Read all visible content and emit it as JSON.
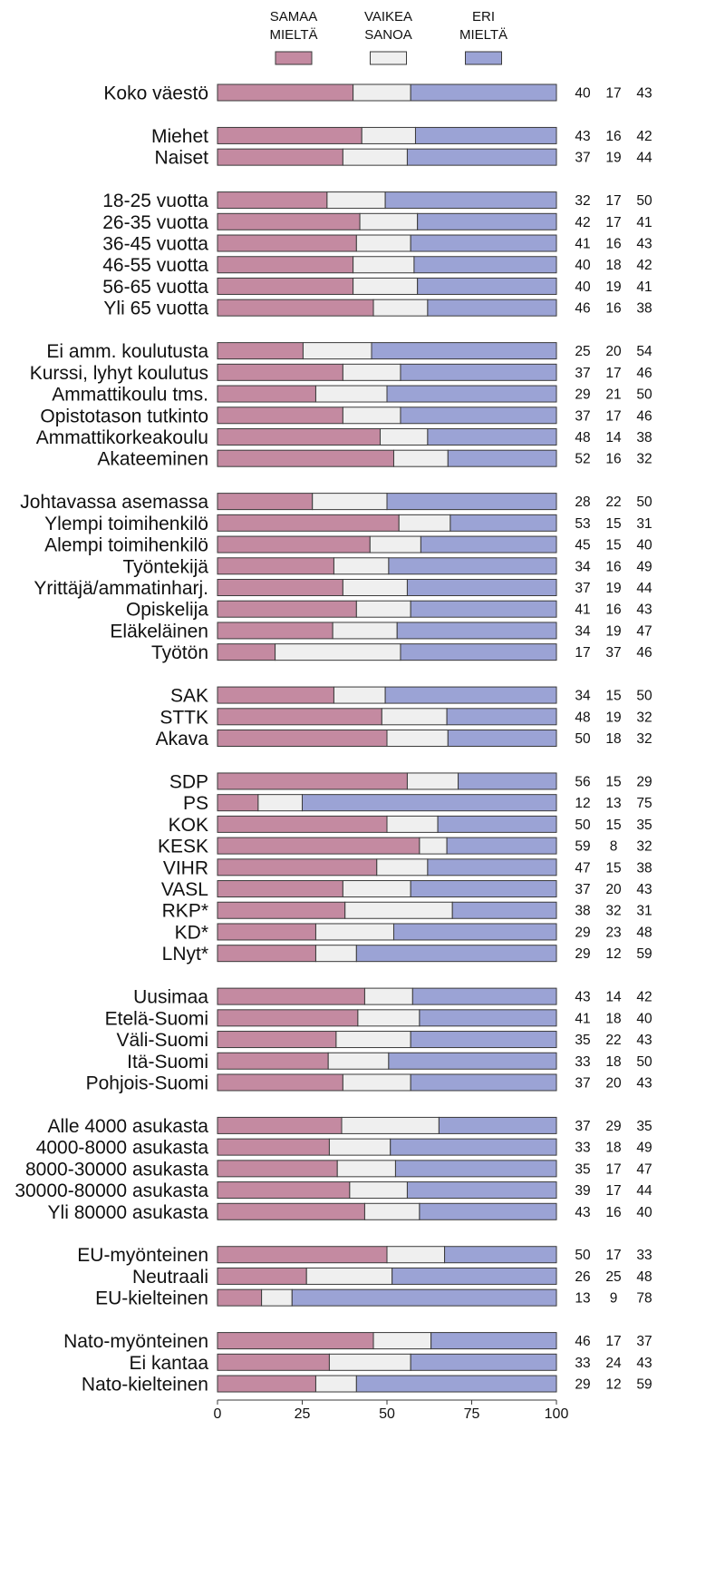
{
  "chart_data": {
    "type": "bar",
    "orientation": "horizontal",
    "stacked": true,
    "xlim": [
      0,
      100
    ],
    "xticks": [
      "0",
      "25",
      "50",
      "75",
      "100"
    ],
    "grid": false,
    "legend_position": "top",
    "series": [
      {
        "name": "SAMAA MIELTÄ",
        "color": "#c48aa1"
      },
      {
        "name": "VAIKEA SANOA",
        "color": "#efefef"
      },
      {
        "name": "ERI MIELTÄ",
        "color": "#9ba3d5"
      }
    ],
    "groups": [
      {
        "rows": [
          {
            "label": "Koko väestö",
            "values": [
              40,
              17,
              43
            ]
          }
        ]
      },
      {
        "rows": [
          {
            "label": "Miehet",
            "values": [
              43,
              16,
              42
            ]
          },
          {
            "label": "Naiset",
            "values": [
              37,
              19,
              44
            ]
          }
        ]
      },
      {
        "rows": [
          {
            "label": "18-25 vuotta",
            "values": [
              32,
              17,
              50
            ]
          },
          {
            "label": "26-35 vuotta",
            "values": [
              42,
              17,
              41
            ]
          },
          {
            "label": "36-45 vuotta",
            "values": [
              41,
              16,
              43
            ]
          },
          {
            "label": "46-55 vuotta",
            "values": [
              40,
              18,
              42
            ]
          },
          {
            "label": "56-65 vuotta",
            "values": [
              40,
              19,
              41
            ]
          },
          {
            "label": "Yli 65 vuotta",
            "values": [
              46,
              16,
              38
            ]
          }
        ]
      },
      {
        "rows": [
          {
            "label": "Ei amm. koulutusta",
            "values": [
              25,
              20,
              54
            ]
          },
          {
            "label": "Kurssi, lyhyt koulutus",
            "values": [
              37,
              17,
              46
            ]
          },
          {
            "label": "Ammattikoulu tms.",
            "values": [
              29,
              21,
              50
            ]
          },
          {
            "label": "Opistotason tutkinto",
            "values": [
              37,
              17,
              46
            ]
          },
          {
            "label": "Ammattikorkeakoulu",
            "values": [
              48,
              14,
              38
            ]
          },
          {
            "label": "Akateeminen",
            "values": [
              52,
              16,
              32
            ]
          }
        ]
      },
      {
        "rows": [
          {
            "label": "Johtavassa asemassa",
            "values": [
              28,
              22,
              50
            ]
          },
          {
            "label": "Ylempi toimihenkilö",
            "values": [
              53,
              15,
              31
            ]
          },
          {
            "label": "Alempi toimihenkilö",
            "values": [
              45,
              15,
              40
            ]
          },
          {
            "label": "Työntekijä",
            "values": [
              34,
              16,
              49
            ]
          },
          {
            "label": "Yrittäjä/ammatinharj.",
            "values": [
              37,
              19,
              44
            ]
          },
          {
            "label": "Opiskelija",
            "values": [
              41,
              16,
              43
            ]
          },
          {
            "label": "Eläkeläinen",
            "values": [
              34,
              19,
              47
            ]
          },
          {
            "label": "Työtön",
            "values": [
              17,
              37,
              46
            ]
          }
        ]
      },
      {
        "rows": [
          {
            "label": "SAK",
            "values": [
              34,
              15,
              50
            ]
          },
          {
            "label": "STTK",
            "values": [
              48,
              19,
              32
            ]
          },
          {
            "label": "Akava",
            "values": [
              50,
              18,
              32
            ]
          }
        ]
      },
      {
        "rows": [
          {
            "label": "SDP",
            "values": [
              56,
              15,
              29
            ]
          },
          {
            "label": "PS",
            "values": [
              12,
              13,
              75
            ]
          },
          {
            "label": "KOK",
            "values": [
              50,
              15,
              35
            ]
          },
          {
            "label": "KESK",
            "values": [
              59,
              8,
              32
            ]
          },
          {
            "label": "VIHR",
            "values": [
              47,
              15,
              38
            ]
          },
          {
            "label": "VASL",
            "values": [
              37,
              20,
              43
            ]
          },
          {
            "label": "RKP*",
            "values": [
              38,
              32,
              31
            ]
          },
          {
            "label": "KD*",
            "values": [
              29,
              23,
              48
            ]
          },
          {
            "label": "LNyt*",
            "values": [
              29,
              12,
              59
            ]
          }
        ]
      },
      {
        "rows": [
          {
            "label": "Uusimaa",
            "values": [
              43,
              14,
              42
            ]
          },
          {
            "label": "Etelä-Suomi",
            "values": [
              41,
              18,
              40
            ]
          },
          {
            "label": "Väli-Suomi",
            "values": [
              35,
              22,
              43
            ]
          },
          {
            "label": "Itä-Suomi",
            "values": [
              33,
              18,
              50
            ]
          },
          {
            "label": "Pohjois-Suomi",
            "values": [
              37,
              20,
              43
            ]
          }
        ]
      },
      {
        "rows": [
          {
            "label": "Alle 4000 asukasta",
            "values": [
              37,
              29,
              35
            ]
          },
          {
            "label": "4000-8000 asukasta",
            "values": [
              33,
              18,
              49
            ]
          },
          {
            "label": "8000-30000 asukasta",
            "values": [
              35,
              17,
              47
            ]
          },
          {
            "label": "30000-80000 asukasta",
            "values": [
              39,
              17,
              44
            ]
          },
          {
            "label": "Yli 80000 asukasta",
            "values": [
              43,
              16,
              40
            ]
          }
        ]
      },
      {
        "rows": [
          {
            "label": "EU-myönteinen",
            "values": [
              50,
              17,
              33
            ]
          },
          {
            "label": "Neutraali",
            "values": [
              26,
              25,
              48
            ]
          },
          {
            "label": "EU-kielteinen",
            "values": [
              13,
              9,
              78
            ]
          }
        ]
      },
      {
        "rows": [
          {
            "label": "Nato-myönteinen",
            "values": [
              46,
              17,
              37
            ]
          },
          {
            "label": "Ei kantaa",
            "values": [
              33,
              24,
              43
            ]
          },
          {
            "label": "Nato-kielteinen",
            "values": [
              29,
              12,
              59
            ]
          }
        ]
      }
    ]
  }
}
